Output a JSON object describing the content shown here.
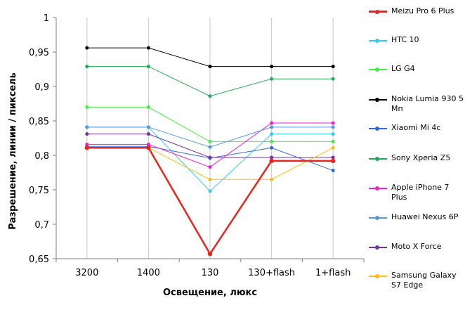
{
  "chart_data": {
    "type": "line",
    "xlabel": "Освещение,  люкс",
    "ylabel": "Разрешение,  линии / пиксель",
    "categories": [
      "3200",
      "1400",
      "130",
      "130+flash",
      "1+flash"
    ],
    "ylim": [
      0.65,
      1
    ],
    "yticks": [
      "0,65",
      "0,7",
      "0,75",
      "0,8",
      "0,85",
      "0,9",
      "0,95",
      "1"
    ],
    "grid": "vertical",
    "legend_position": "right",
    "series": [
      {
        "name": "Meizu Pro 6 Plus",
        "color": "#e8241c",
        "emphasis": true,
        "values": [
          0.811,
          0.811,
          0.657,
          0.792,
          0.792
        ]
      },
      {
        "name": "HTC 10",
        "color": "#33ccee",
        "values": [
          0.841,
          0.841,
          0.748,
          0.831,
          0.831
        ]
      },
      {
        "name": "LG G4",
        "color": "#44ee44",
        "values": [
          0.87,
          0.87,
          0.82,
          0.82,
          0.82
        ]
      },
      {
        "name": "Nokia Lumia 930 5 Мп",
        "color": "#000000",
        "values": [
          0.956,
          0.956,
          0.929,
          0.929,
          0.929
        ]
      },
      {
        "name": "Xiaomi Mi 4c",
        "color": "#3366dd",
        "values": [
          0.813,
          0.813,
          0.796,
          0.811,
          0.778
        ]
      },
      {
        "name": "Sony Xperia Z5",
        "color": "#22aa55",
        "values": [
          0.929,
          0.929,
          0.886,
          0.911,
          0.911
        ]
      },
      {
        "name": "Apple iPhone 7 Plus",
        "color": "#ee22cc",
        "values": [
          0.816,
          0.816,
          0.783,
          0.847,
          0.847
        ]
      },
      {
        "name": "Huawei Nexus 6P",
        "color": "#5599dd",
        "values": [
          0.841,
          0.841,
          0.812,
          0.841,
          0.841
        ]
      },
      {
        "name": "Moto X Force",
        "color": "#773399",
        "values": [
          0.831,
          0.831,
          0.797,
          0.797,
          0.797
        ]
      },
      {
        "name": "Samsung Galaxy S7 Edge",
        "color": "#ffbb11",
        "values": [
          0.811,
          0.811,
          0.765,
          0.765,
          0.811
        ]
      }
    ]
  }
}
